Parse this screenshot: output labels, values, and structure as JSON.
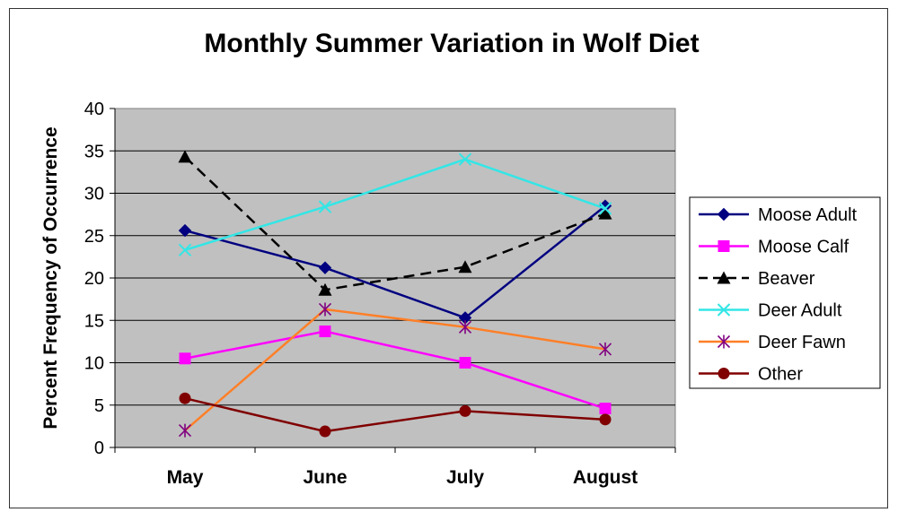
{
  "chart_data": {
    "type": "line",
    "title": "Monthly Summer Variation in Wolf Diet",
    "xlabel": "",
    "ylabel": "Percent Frequency of Occurrence",
    "categories": [
      "May",
      "June",
      "July",
      "August"
    ],
    "ylim": [
      0,
      40
    ],
    "yticks": [
      0,
      5,
      10,
      15,
      20,
      25,
      30,
      35,
      40
    ],
    "grid": true,
    "plot_background": "#c0c0c0",
    "legend_position": "right",
    "series": [
      {
        "name": "Moose Adult",
        "values": [
          25.6,
          21.2,
          15.3,
          28.5
        ],
        "color": "#000080",
        "marker": "diamond",
        "dash": "solid"
      },
      {
        "name": "Moose Calf",
        "values": [
          10.5,
          13.7,
          10.0,
          4.6
        ],
        "color": "#ff00ff",
        "marker": "square",
        "dash": "solid"
      },
      {
        "name": "Beaver",
        "values": [
          34.3,
          18.6,
          21.3,
          27.6
        ],
        "color": "#000000",
        "marker": "triangle",
        "dash": "dashed"
      },
      {
        "name": "Deer Adult",
        "values": [
          23.3,
          28.4,
          34.0,
          28.2
        ],
        "color": "#33e6e6",
        "marker": "x",
        "dash": "solid"
      },
      {
        "name": "Deer Fawn",
        "values": [
          2.0,
          16.3,
          14.2,
          11.6
        ],
        "color": "#ff7f27",
        "marker_color": "#800080",
        "marker": "star",
        "dash": "solid"
      },
      {
        "name": "Other",
        "values": [
          5.8,
          1.9,
          4.3,
          3.3
        ],
        "color": "#800000",
        "marker": "circle",
        "dash": "solid"
      }
    ]
  }
}
